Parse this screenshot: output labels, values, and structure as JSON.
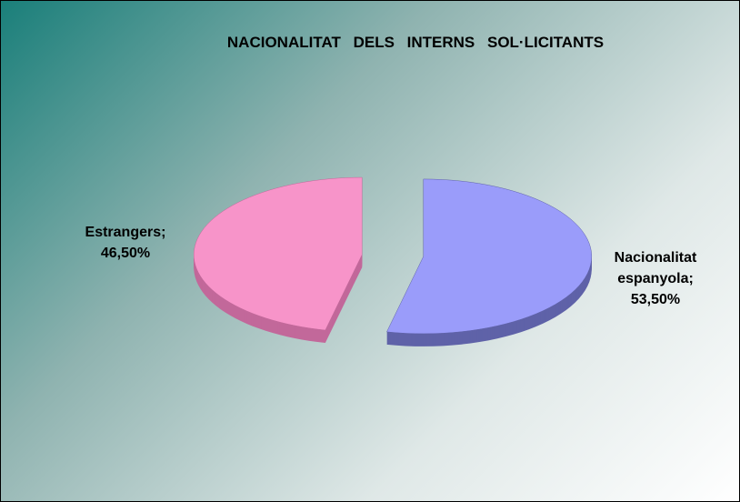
{
  "chart_data": {
    "type": "pie",
    "title": "NACIONALITAT DELS INTERNS SOL·LICITANTS",
    "categories": [
      "Nacionalitat espanyola;",
      "Estrangers;"
    ],
    "values": [
      53.5,
      46.5
    ],
    "value_labels": [
      "53,50%",
      "46,50%"
    ],
    "colors": [
      "#9a9cfa",
      "#f794c9"
    ],
    "side_colors": [
      "#5f62a8",
      "#c2689a"
    ]
  }
}
